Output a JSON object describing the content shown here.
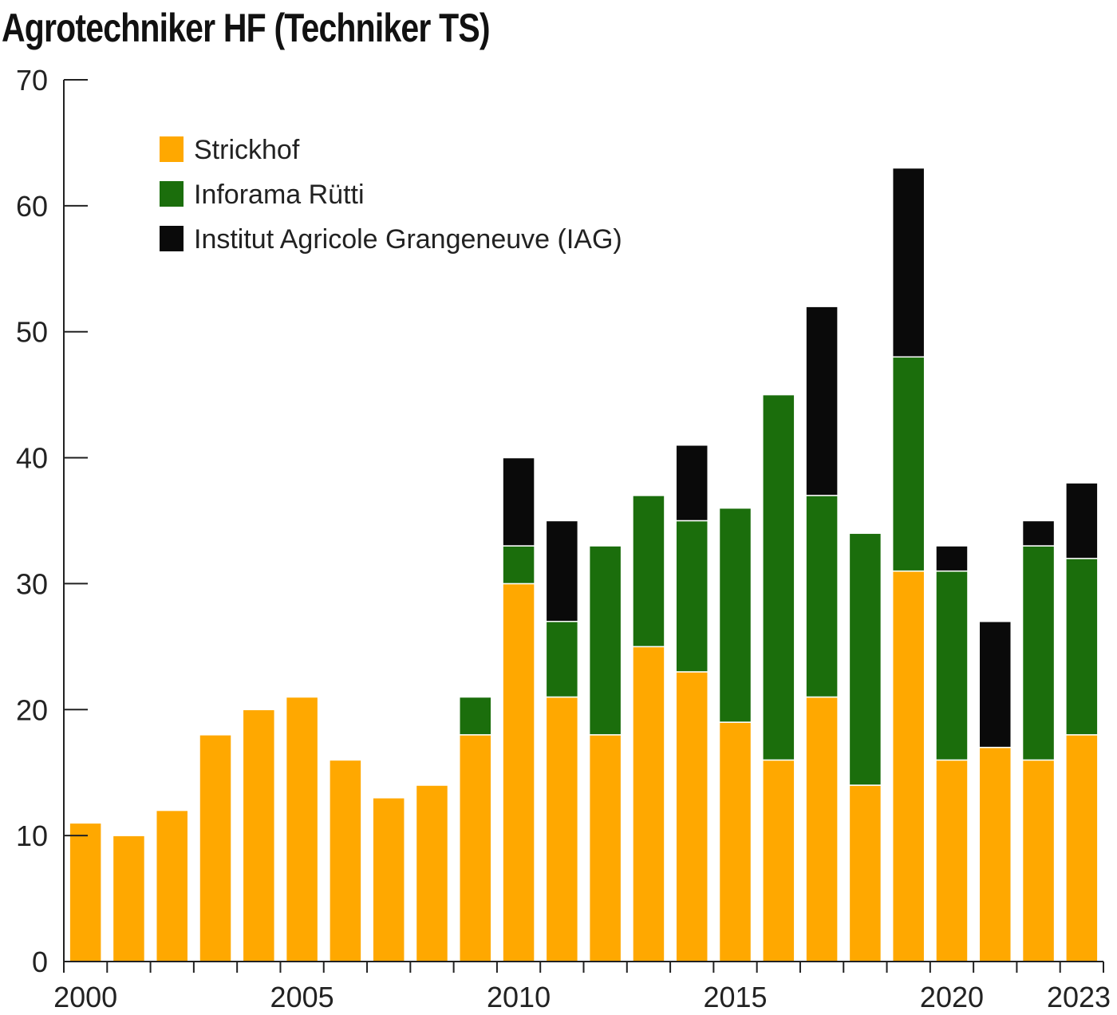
{
  "chart_data": {
    "type": "bar",
    "stacked": true,
    "title": "Agrotechniker HF (Techniker TS)",
    "xlabel": "",
    "ylabel": "",
    "ylim": [
      0,
      70
    ],
    "yticks": [
      "0",
      "10",
      "20",
      "30",
      "40",
      "50",
      "60",
      "70"
    ],
    "xtick_labels": [
      "2000",
      "2005",
      "2010",
      "2015",
      "2020",
      "2023"
    ],
    "categories": [
      "2000",
      "2001",
      "2002",
      "2003",
      "2004",
      "2005",
      "2006",
      "2007",
      "2008",
      "2009",
      "2010",
      "2011",
      "2012",
      "2013",
      "2014",
      "2015",
      "2016",
      "2017",
      "2018",
      "2019",
      "2020",
      "2021",
      "2022",
      "2023"
    ],
    "series": [
      {
        "name": "Strickhof",
        "color": "#FFA800",
        "values": [
          11,
          10,
          12,
          18,
          20,
          21,
          16,
          13,
          14,
          18,
          30,
          21,
          18,
          25,
          23,
          19,
          16,
          21,
          14,
          31,
          16,
          17,
          16,
          18
        ]
      },
      {
        "name": "Inforama Rütti",
        "color": "#1B6E0C",
        "values": [
          0,
          0,
          0,
          0,
          0,
          0,
          0,
          0,
          0,
          3,
          3,
          6,
          15,
          12,
          12,
          17,
          29,
          16,
          20,
          17,
          15,
          0,
          17,
          14
        ]
      },
      {
        "name": "Institut Agricole Grangeneuve (IAG)",
        "color": "#0A0A0A",
        "values": [
          0,
          0,
          0,
          0,
          0,
          0,
          0,
          0,
          0,
          0,
          7,
          8,
          0,
          0,
          6,
          0,
          0,
          15,
          0,
          15,
          2,
          10,
          2,
          6
        ]
      }
    ],
    "legend_position": "top-left",
    "grid": false
  }
}
